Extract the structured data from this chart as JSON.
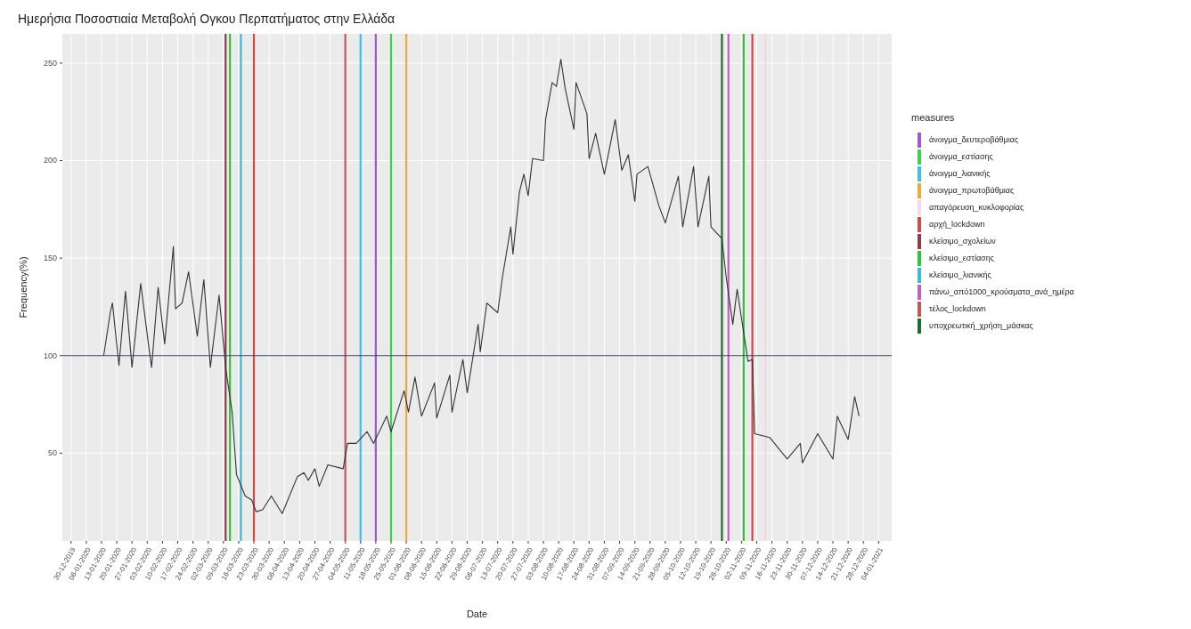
{
  "chart_data": {
    "type": "line",
    "title": "Ημερήσια Ποσοστιαία Μεταβολή Ογκου Περπατήματος στην Ελλάδα",
    "xlabel": "Date",
    "ylabel": "Frequency(%)",
    "legend_title": "measures",
    "legend": "right",
    "grid": true,
    "xlim": [
      "2019-12-26",
      "2021-01-10"
    ],
    "ylim": [
      5,
      265
    ],
    "yticks": [
      50,
      100,
      150,
      200,
      250
    ],
    "xticks": [
      {
        "value": "2019-12-30",
        "label": "30-12-2019"
      },
      {
        "value": "2020-01-06",
        "label": "06-01-2020"
      },
      {
        "value": "2020-01-13",
        "label": "13-01-2020"
      },
      {
        "value": "2020-01-20",
        "label": "20-01-2020"
      },
      {
        "value": "2020-01-27",
        "label": "27-01-2020"
      },
      {
        "value": "2020-02-03",
        "label": "03-02-2020"
      },
      {
        "value": "2020-02-10",
        "label": "10-02-2020"
      },
      {
        "value": "2020-02-17",
        "label": "17-02-2020"
      },
      {
        "value": "2020-02-24",
        "label": "24-02-2020"
      },
      {
        "value": "2020-03-02",
        "label": "02-03-2020"
      },
      {
        "value": "2020-03-09",
        "label": "09-03-2020"
      },
      {
        "value": "2020-03-16",
        "label": "16-03-2020"
      },
      {
        "value": "2020-03-23",
        "label": "23-03-2020"
      },
      {
        "value": "2020-03-30",
        "label": "30-03-2020"
      },
      {
        "value": "2020-04-06",
        "label": "06-04-2020"
      },
      {
        "value": "2020-04-13",
        "label": "13-04-2020"
      },
      {
        "value": "2020-04-20",
        "label": "20-04-2020"
      },
      {
        "value": "2020-04-27",
        "label": "27-04-2020"
      },
      {
        "value": "2020-05-04",
        "label": "04-05-2020"
      },
      {
        "value": "2020-05-11",
        "label": "11-05-2020"
      },
      {
        "value": "2020-05-18",
        "label": "18-05-2020"
      },
      {
        "value": "2020-05-25",
        "label": "25-05-2020"
      },
      {
        "value": "2020-06-01",
        "label": "01-06-2020"
      },
      {
        "value": "2020-06-08",
        "label": "08-06-2020"
      },
      {
        "value": "2020-06-15",
        "label": "15-06-2020"
      },
      {
        "value": "2020-06-22",
        "label": "22-06-2020"
      },
      {
        "value": "2020-06-29",
        "label": "29-06-2020"
      },
      {
        "value": "2020-07-06",
        "label": "06-07-2020"
      },
      {
        "value": "2020-07-13",
        "label": "13-07-2020"
      },
      {
        "value": "2020-07-20",
        "label": "20-07-2020"
      },
      {
        "value": "2020-07-27",
        "label": "27-07-2020"
      },
      {
        "value": "2020-08-03",
        "label": "03-08-2020"
      },
      {
        "value": "2020-08-10",
        "label": "10-08-2020"
      },
      {
        "value": "2020-08-17",
        "label": "17-08-2020"
      },
      {
        "value": "2020-08-24",
        "label": "24-08-2020"
      },
      {
        "value": "2020-08-31",
        "label": "31-08-2020"
      },
      {
        "value": "2020-09-07",
        "label": "07-09-2020"
      },
      {
        "value": "2020-09-14",
        "label": "14-09-2020"
      },
      {
        "value": "2020-09-21",
        "label": "21-09-2020"
      },
      {
        "value": "2020-09-28",
        "label": "28-09-2020"
      },
      {
        "value": "2020-10-05",
        "label": "05-10-2020"
      },
      {
        "value": "2020-10-12",
        "label": "12-10-2020"
      },
      {
        "value": "2020-10-19",
        "label": "19-10-2020"
      },
      {
        "value": "2020-10-26",
        "label": "26-10-2020"
      },
      {
        "value": "2020-11-02",
        "label": "02-11-2020"
      },
      {
        "value": "2020-11-09",
        "label": "09-11-2020"
      },
      {
        "value": "2020-11-16",
        "label": "16-11-2020"
      },
      {
        "value": "2020-11-23",
        "label": "23-11-2020"
      },
      {
        "value": "2020-11-30",
        "label": "30-11-2020"
      },
      {
        "value": "2020-12-07",
        "label": "07-12-2020"
      },
      {
        "value": "2020-12-14",
        "label": "14-12-2020"
      },
      {
        "value": "2020-12-21",
        "label": "21-12-2020"
      },
      {
        "value": "2020-12-28",
        "label": "28-12-2020"
      },
      {
        "value": "2021-01-04",
        "label": "04-01-2021"
      }
    ],
    "x": [
      "2020-01-14",
      "2020-01-17",
      "2020-01-18",
      "2020-01-21",
      "2020-01-24",
      "2020-01-27",
      "2020-01-31",
      "2020-02-04",
      "2020-02-05",
      "2020-02-08",
      "2020-02-11",
      "2020-02-15",
      "2020-02-16",
      "2020-02-19",
      "2020-02-22",
      "2020-02-26",
      "2020-02-29",
      "2020-03-03",
      "2020-03-07",
      "2020-03-10",
      "2020-03-13",
      "2020-03-15",
      "2020-03-19",
      "2020-03-22",
      "2020-03-24",
      "2020-03-27",
      "2020-03-31",
      "2020-04-05",
      "2020-04-12",
      "2020-04-15",
      "2020-04-17",
      "2020-04-20",
      "2020-04-22",
      "2020-04-26",
      "2020-05-03",
      "2020-05-05",
      "2020-05-09",
      "2020-05-14",
      "2020-05-17",
      "2020-05-23",
      "2020-05-25",
      "2020-05-31",
      "2020-06-02",
      "2020-06-05",
      "2020-06-08",
      "2020-06-14",
      "2020-06-15",
      "2020-06-21",
      "2020-06-22",
      "2020-06-27",
      "2020-06-29",
      "2020-07-04",
      "2020-07-05",
      "2020-07-08",
      "2020-07-13",
      "2020-07-15",
      "2020-07-19",
      "2020-07-20",
      "2020-07-23",
      "2020-07-25",
      "2020-07-27",
      "2020-07-29",
      "2020-08-03",
      "2020-08-04",
      "2020-08-07",
      "2020-08-09",
      "2020-08-11",
      "2020-08-13",
      "2020-08-17",
      "2020-08-18",
      "2020-08-23",
      "2020-08-24",
      "2020-08-27",
      "2020-08-31",
      "2020-09-05",
      "2020-09-08",
      "2020-09-11",
      "2020-09-14",
      "2020-09-15",
      "2020-09-20",
      "2020-09-25",
      "2020-09-28",
      "2020-10-04",
      "2020-10-06",
      "2020-10-11",
      "2020-10-13",
      "2020-10-18",
      "2020-10-19",
      "2020-10-24",
      "2020-10-26",
      "2020-10-29",
      "2020-10-31",
      "2020-11-05",
      "2020-11-07",
      "2020-11-08",
      "2020-11-15",
      "2020-11-23",
      "2020-11-29",
      "2020-11-30",
      "2020-12-07",
      "2020-12-14",
      "2020-12-16",
      "2020-12-21",
      "2020-12-24",
      "2020-12-26"
    ],
    "series": [
      {
        "name": "άνοιγμα_δευτεροβάθμιας",
        "color": "#9b59c9",
        "x": [
          "2020-05-18",
          "2020-05-18"
        ],
        "values": [
          5,
          265
        ]
      },
      {
        "name": "άνοιγμα_εστίασης",
        "color": "#3ccf4e",
        "x": [
          "2020-05-25",
          "2020-05-25"
        ],
        "values": [
          5,
          265
        ]
      },
      {
        "name": "άνοιγμα_λιανικής",
        "color": "#42bfe0",
        "x": [
          "2020-05-11",
          "2020-05-11"
        ],
        "values": [
          5,
          265
        ]
      },
      {
        "name": "άνοιγμα_πρωτοβάθμιας",
        "color": "#f0a83c",
        "x": [
          "2020-06-01",
          "2020-06-01"
        ],
        "values": [
          5,
          265
        ]
      },
      {
        "name": "απαγόρευση_κυκλοφορίας",
        "color": "#f4d6e4",
        "x": [
          "2020-11-13",
          "2020-11-13"
        ],
        "values": [
          5,
          265
        ]
      },
      {
        "name": "αρχή_lockdown",
        "color": "#cd4b4b",
        "x": [
          "2020-03-23",
          "2020-03-23"
        ],
        "values": [
          5,
          265
        ]
      },
      {
        "name": "κλείσιμο_σχολείων",
        "color": "#8a3d4a",
        "x": [
          "2020-03-10",
          "2020-03-10"
        ],
        "values": [
          5,
          265
        ]
      },
      {
        "name": "κλείσιμο_εστίασης",
        "color": "#33c23e",
        "x": [
          "2020-03-12",
          "2020-03-12"
        ],
        "values": [
          5,
          265
        ]
      },
      {
        "name": "κλείσιμο_λιανικής",
        "color": "#3fb8d6",
        "x": [
          "2020-03-17",
          "2020-03-17"
        ],
        "values": [
          5,
          265
        ]
      },
      {
        "name": "πάνω_από1000_κρούσματα_ανά_ημέρα",
        "color": "#c45ec4",
        "x": [
          "2020-10-27",
          "2020-10-27"
        ],
        "values": [
          5,
          265
        ]
      },
      {
        "name": "τέλος_lockdown",
        "color": "#c0585c",
        "x": [
          "2020-05-04",
          "2020-05-04"
        ],
        "values": [
          5,
          265
        ]
      },
      {
        "name": "υποχρεωτική_χρήση_μάσκας",
        "color": "#1f6b33",
        "x": [
          "2020-10-24",
          "2020-10-24"
        ],
        "values": [
          5,
          265
        ]
      },
      {
        "color": "#33c23e",
        "x": [
          "2020-11-03",
          "2020-11-03"
        ],
        "values": [
          5,
          265
        ]
      },
      {
        "color": "#cd4b4b",
        "x": [
          "2020-11-07",
          "2020-11-07"
        ],
        "values": [
          5,
          265
        ]
      },
      {
        "color": "#333333",
        "values": [
          100,
          122,
          127,
          95,
          133,
          94,
          137,
          102,
          94,
          135,
          106,
          156,
          124,
          127,
          143,
          110,
          139,
          94,
          131,
          94,
          71,
          39,
          28,
          26,
          20,
          21,
          28,
          19,
          38,
          40,
          36,
          42,
          33,
          44,
          42,
          55,
          55,
          61,
          55,
          69,
          61,
          82,
          71,
          89,
          69,
          86,
          68,
          90,
          71,
          98,
          81,
          116,
          102,
          127,
          122,
          139,
          166,
          152,
          184,
          193,
          182,
          201,
          200,
          221,
          240,
          238,
          252,
          237,
          216,
          240,
          224,
          201,
          214,
          193,
          221,
          195,
          203,
          179,
          193,
          197,
          177,
          168,
          192,
          166,
          197,
          166,
          192,
          166,
          160,
          140,
          116,
          134,
          97,
          98,
          60,
          58,
          47,
          55,
          45,
          60,
          47,
          69,
          57,
          79,
          69
        ]
      }
    ],
    "ref_lines": [
      {
        "axis": "y",
        "value": 100,
        "color": "#3b3f6e"
      }
    ]
  }
}
